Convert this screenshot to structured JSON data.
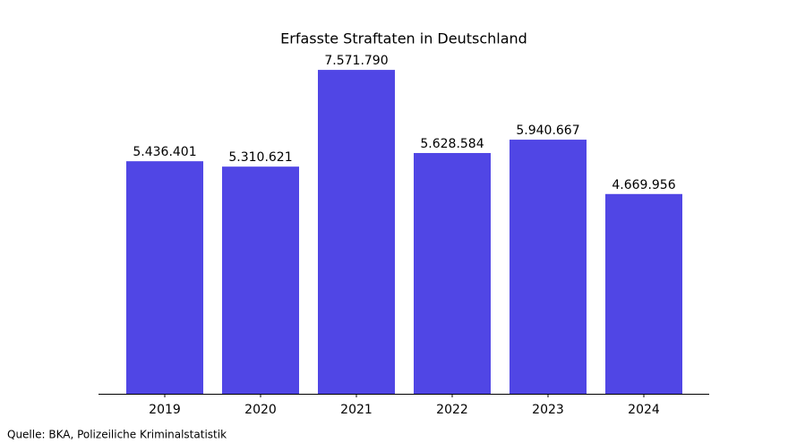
{
  "chart_data": {
    "type": "bar",
    "title": "Erfasste Straftaten in Deutschland",
    "categories": [
      "2019",
      "2020",
      "2021",
      "2022",
      "2023",
      "2024"
    ],
    "values": [
      5436401,
      5310621,
      7571790,
      5628584,
      5940667,
      4669956
    ],
    "value_labels": [
      "5.436.401",
      "5.310.621",
      "7.571.790",
      "5.628.584",
      "5.940.667",
      "4.669.956"
    ],
    "color": "#5046e5",
    "ylim": [
      0,
      7950380
    ],
    "source": "Quelle: BKA, Polizeiliche Kriminalstatistik"
  }
}
